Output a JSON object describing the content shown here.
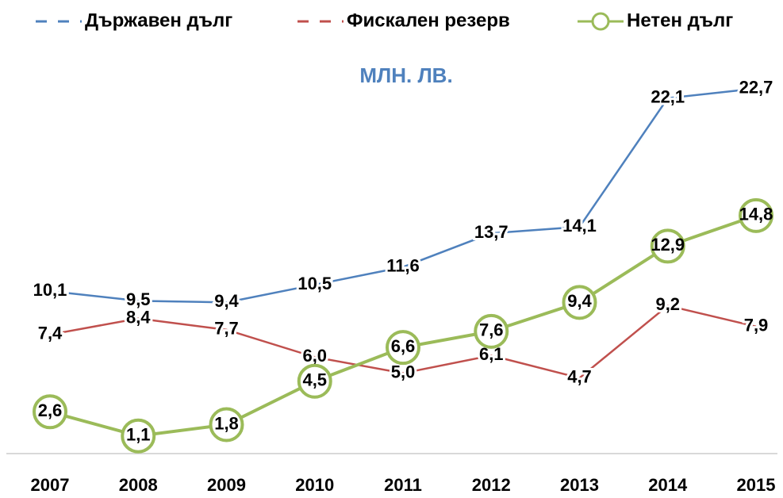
{
  "chart_data": {
    "type": "line",
    "subtitle": "МЛН. ЛВ.",
    "categories": [
      "2007",
      "2008",
      "2009",
      "2010",
      "2011",
      "2012",
      "2013",
      "2014",
      "2015"
    ],
    "series": [
      {
        "name": "Държавен дълг",
        "color": "#4f81bd",
        "values": [
          10.1,
          9.5,
          9.4,
          10.5,
          11.6,
          13.7,
          14.1,
          22.1,
          22.7
        ],
        "value_labels": [
          "10,1",
          "9,5",
          "9,4",
          "10,5",
          "11,6",
          "13,7",
          "14,1",
          "22,1",
          "22,7"
        ]
      },
      {
        "name": "Фискален резерв",
        "color": "#c0504d",
        "values": [
          7.4,
          8.4,
          7.7,
          6.0,
          5.0,
          6.1,
          4.7,
          9.2,
          7.9
        ],
        "value_labels": [
          "7,4",
          "8,4",
          "7,7",
          "6,0",
          "5,0",
          "6,1",
          "4,7",
          "9,2",
          "7,9"
        ]
      },
      {
        "name": "Нетен дълг",
        "color": "#9bbb59",
        "marker": "circle",
        "values": [
          2.6,
          1.1,
          1.8,
          4.5,
          6.6,
          7.6,
          9.4,
          12.9,
          14.8
        ],
        "value_labels": [
          "2,6",
          "1,1",
          "1,8",
          "4,5",
          "6,6",
          "7,6",
          "9,4",
          "12,9",
          "14,8"
        ]
      }
    ],
    "ylim": [
      0,
      25
    ],
    "legend": "top"
  }
}
